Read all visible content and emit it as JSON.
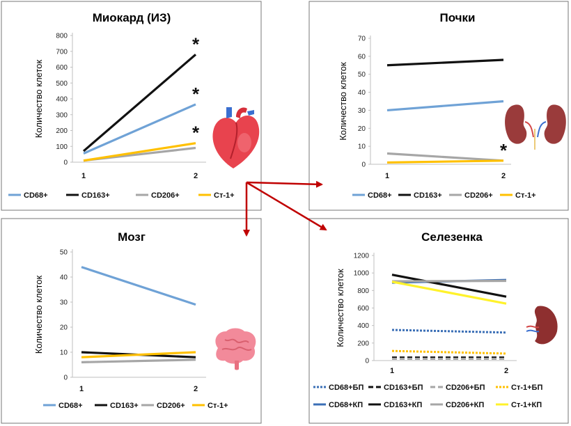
{
  "colors": {
    "CD68": "#6fa2d6",
    "CD163": "#111111",
    "CD206": "#a6a6a6",
    "Ct1": "#ffc000",
    "CD68_dashed": "#3b6fb6",
    "Ct1_spleen": "#fff22b",
    "arrow": "#c00000"
  },
  "chart_data": [
    {
      "id": "myocardium",
      "type": "line",
      "title": "Миокард (ИЗ)",
      "ylabel": "Количество клеток",
      "xlabel": "",
      "categories": [
        "1",
        "2"
      ],
      "ylim": [
        0,
        800
      ],
      "yticks": [
        "0",
        "100",
        "200",
        "300",
        "400",
        "500",
        "600",
        "700",
        "800"
      ],
      "series": [
        {
          "name": "CD68+",
          "values": [
            55,
            365
          ],
          "color": "CD68",
          "dash": "solid"
        },
        {
          "name": "CD163+",
          "values": [
            70,
            680
          ],
          "color": "CD163",
          "dash": "solid"
        },
        {
          "name": "CD206+",
          "values": [
            10,
            90
          ],
          "color": "CD206",
          "dash": "solid"
        },
        {
          "name": "Ст-1+",
          "values": [
            10,
            120
          ],
          "color": "Ct1",
          "dash": "solid"
        }
      ],
      "annotations": [
        {
          "text": "*",
          "series": "CD163+",
          "at": 2
        },
        {
          "text": "*",
          "series": "CD68+",
          "at": 2
        },
        {
          "text": "*",
          "series": "Ст-1+",
          "at": 2
        }
      ],
      "icon": "heart-icon"
    },
    {
      "id": "kidneys",
      "type": "line",
      "title": "Почки",
      "ylabel": "Количество клеток",
      "xlabel": "",
      "categories": [
        "1",
        "2"
      ],
      "ylim": [
        0,
        70
      ],
      "yticks": [
        "0",
        "10",
        "20",
        "30",
        "40",
        "50",
        "60",
        "70"
      ],
      "series": [
        {
          "name": "CD68+",
          "values": [
            30,
            35
          ],
          "color": "CD68",
          "dash": "solid"
        },
        {
          "name": "CD163+",
          "values": [
            55,
            58
          ],
          "color": "CD163",
          "dash": "solid"
        },
        {
          "name": "CD206+",
          "values": [
            6,
            2
          ],
          "color": "CD206",
          "dash": "solid"
        },
        {
          "name": "Ст-1+",
          "values": [
            1,
            2
          ],
          "color": "Ct1",
          "dash": "solid"
        }
      ],
      "annotations": [
        {
          "text": "*",
          "series": "Ст-1+",
          "at": 2
        }
      ],
      "icon": "kidneys-icon"
    },
    {
      "id": "brain",
      "type": "line",
      "title": "Мозг",
      "ylabel": "Количество клеток",
      "xlabel": "",
      "categories": [
        "1",
        "2"
      ],
      "ylim": [
        0,
        50
      ],
      "yticks": [
        "0",
        "10",
        "20",
        "30",
        "40",
        "50"
      ],
      "series": [
        {
          "name": "CD68+",
          "values": [
            44,
            29
          ],
          "color": "CD68",
          "dash": "solid"
        },
        {
          "name": "CD163+",
          "values": [
            10,
            8
          ],
          "color": "CD163",
          "dash": "solid"
        },
        {
          "name": "CD206+",
          "values": [
            6,
            7
          ],
          "color": "CD206",
          "dash": "solid"
        },
        {
          "name": "Ст-1+",
          "values": [
            8,
            10
          ],
          "color": "Ct1",
          "dash": "solid"
        }
      ],
      "annotations": [],
      "icon": "brain-icon"
    },
    {
      "id": "spleen",
      "type": "line",
      "title": "Селезенка",
      "ylabel": "Количество клеток",
      "xlabel": "",
      "categories": [
        "1",
        "2"
      ],
      "ylim": [
        0,
        1200
      ],
      "yticks": [
        "0",
        "200",
        "400",
        "600",
        "800",
        "1000",
        "1200"
      ],
      "series": [
        {
          "name": "CD68+БП",
          "values": [
            350,
            320
          ],
          "color": "CD68_dashed",
          "dash": "dotted"
        },
        {
          "name": "CD163+БП",
          "values": [
            35,
            35
          ],
          "color": "CD163",
          "dash": "dashed"
        },
        {
          "name": "CD206+БП",
          "values": [
            20,
            20
          ],
          "color": "CD206",
          "dash": "dashed"
        },
        {
          "name": "Ст-1+БП",
          "values": [
            110,
            80
          ],
          "color": "Ct1",
          "dash": "dotted"
        },
        {
          "name": "CD68+КП",
          "values": [
            890,
            920
          ],
          "color": "CD68_dashed",
          "dash": "solid"
        },
        {
          "name": "CD163+КП",
          "values": [
            980,
            730
          ],
          "color": "CD163",
          "dash": "solid"
        },
        {
          "name": "CD206+КП",
          "values": [
            905,
            910
          ],
          "color": "CD206",
          "dash": "solid"
        },
        {
          "name": "Ст-1+КП",
          "values": [
            900,
            650
          ],
          "color": "Ct1_spleen",
          "dash": "solid"
        }
      ],
      "annotations": [],
      "icon": "spleen-icon"
    }
  ]
}
